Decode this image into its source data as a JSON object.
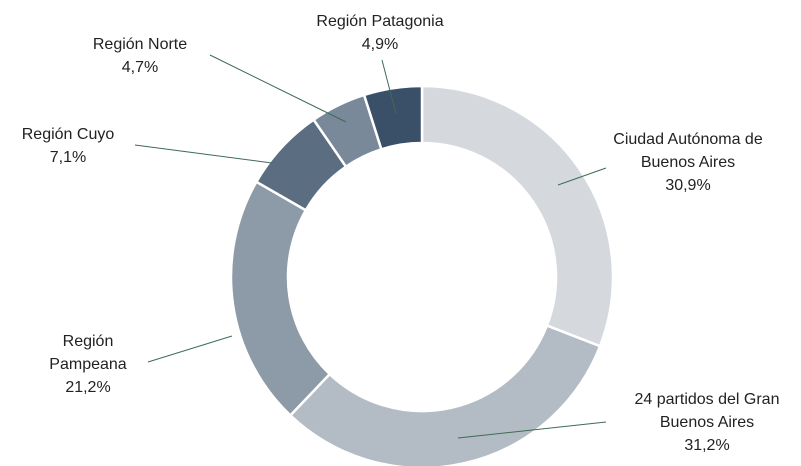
{
  "chart_data": {
    "type": "donut",
    "categories": [
      "Ciudad Autónoma de Buenos Aires",
      "24 partidos del Gran Buenos Aires",
      "Región Pampeana",
      "Región Cuyo",
      "Región Norte",
      "Región Patagonia"
    ],
    "values": [
      30.9,
      31.2,
      21.2,
      7.1,
      4.7,
      4.9
    ],
    "value_labels": [
      "30,9%",
      "31,2%",
      "21,2%",
      "7,1%",
      "4,7%",
      "4,9%"
    ],
    "colors": [
      "#d5d9de",
      "#b3bcc5",
      "#8d9aa7",
      "#5b6d80",
      "#7a8999",
      "#3a5068"
    ]
  }
}
